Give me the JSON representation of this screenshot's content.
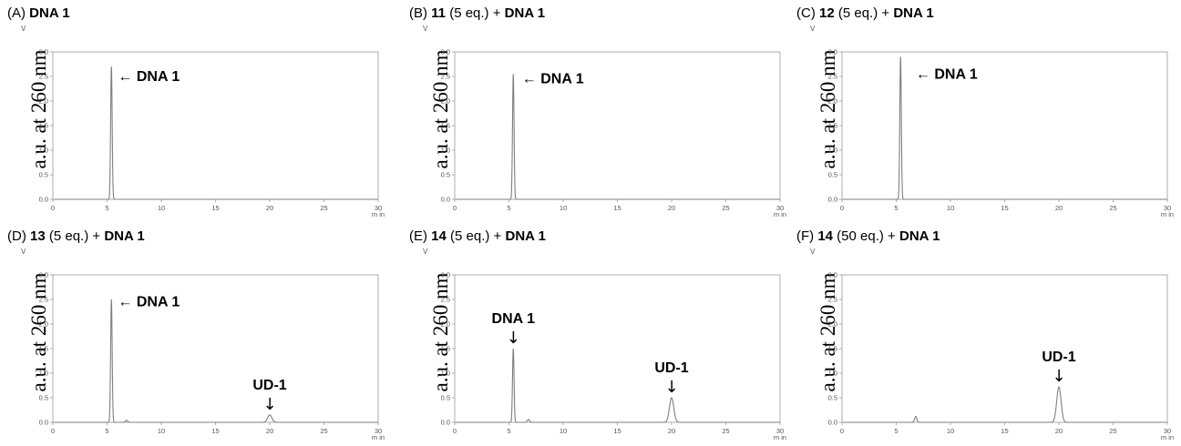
{
  "ylabel": "a.u. at 260 nm",
  "y_unit_mark": "V",
  "x_unit_mark": "m in",
  "chart_data": [
    {
      "type": "line",
      "id": "A",
      "title": {
        "prefix": "(A) ",
        "compound": "",
        "eq": "",
        "dna": "DNA 1"
      },
      "xlim": [
        0,
        30
      ],
      "ylim": [
        0,
        3.0
      ],
      "xticks": [
        "0",
        "5",
        "10",
        "15",
        "20",
        "25",
        "30"
      ],
      "yticks": [
        "0.0",
        "0.5",
        "1.0",
        "1.5",
        "2.0",
        "2.5",
        "3.0"
      ],
      "baseline": 0.0,
      "peaks": [
        {
          "x": 5.4,
          "y": 2.7,
          "w": 0.07
        }
      ],
      "annotations": [
        {
          "text": "DNA 1",
          "style": "left-arrow",
          "x": 6.0,
          "y": 2.5
        }
      ]
    },
    {
      "type": "line",
      "id": "B",
      "title": {
        "prefix": "(B) ",
        "compound": "11",
        "eq": " (5 eq.) + ",
        "dna": "DNA 1"
      },
      "xlim": [
        0,
        30
      ],
      "ylim": [
        0,
        3.0
      ],
      "xticks": [
        "0",
        "5",
        "10",
        "15",
        "20",
        "25",
        "30"
      ],
      "yticks": [
        "0.0",
        "0.5",
        "1.0",
        "1.5",
        "2.0",
        "2.5",
        "3.0"
      ],
      "baseline": 0.0,
      "peaks": [
        {
          "x": 5.4,
          "y": 2.55,
          "w": 0.07
        }
      ],
      "annotations": [
        {
          "text": "DNA 1",
          "style": "left-arrow",
          "x": 6.2,
          "y": 2.45
        }
      ]
    },
    {
      "type": "line",
      "id": "C",
      "title": {
        "prefix": "(C) ",
        "compound": "12",
        "eq": " (5 eq.) + ",
        "dna": "DNA 1"
      },
      "xlim": [
        0,
        30
      ],
      "ylim": [
        0,
        3.0
      ],
      "xticks": [
        "0",
        "5",
        "10",
        "15",
        "20",
        "25",
        "30"
      ],
      "yticks": [
        "0.0",
        "0.5",
        "1.0",
        "1.5",
        "2.0",
        "2.5",
        "3.0"
      ],
      "baseline": 0.0,
      "peaks": [
        {
          "x": 5.4,
          "y": 2.9,
          "w": 0.07
        }
      ],
      "annotations": [
        {
          "text": "DNA 1",
          "style": "left-arrow",
          "x": 6.8,
          "y": 2.55
        }
      ]
    },
    {
      "type": "line",
      "id": "D",
      "title": {
        "prefix": "(D) ",
        "compound": "13",
        "eq": " (5 eq.) + ",
        "dna": "DNA 1"
      },
      "xlim": [
        0,
        30
      ],
      "ylim": [
        0,
        3.0
      ],
      "xticks": [
        "0",
        "5",
        "10",
        "15",
        "20",
        "25",
        "30"
      ],
      "yticks": [
        "0.0",
        "0.5",
        "1.0",
        "1.5",
        "2.0",
        "2.5",
        "3.0"
      ],
      "baseline": 0.0,
      "peaks": [
        {
          "x": 5.4,
          "y": 2.5,
          "w": 0.07
        },
        {
          "x": 6.8,
          "y": 0.04,
          "w": 0.1
        },
        {
          "x": 20.0,
          "y": 0.15,
          "w": 0.2
        }
      ],
      "annotations": [
        {
          "text": "DNA 1",
          "style": "left-arrow",
          "x": 6.0,
          "y": 2.45
        },
        {
          "text": "UD-1",
          "style": "down-arrow",
          "x": 20.0,
          "y": 0.15
        }
      ]
    },
    {
      "type": "line",
      "id": "E",
      "title": {
        "prefix": "(E) ",
        "compound": "14",
        "eq": " (5 eq.) + ",
        "dna": "DNA 1"
      },
      "xlim": [
        0,
        30
      ],
      "ylim": [
        0,
        3.0
      ],
      "xticks": [
        "0",
        "5",
        "10",
        "15",
        "20",
        "25",
        "30"
      ],
      "yticks": [
        "0.0",
        "0.5",
        "1.0",
        "1.5",
        "2.0",
        "2.5",
        "3.0"
      ],
      "baseline": 0.0,
      "peaks": [
        {
          "x": 5.4,
          "y": 1.5,
          "w": 0.07
        },
        {
          "x": 6.8,
          "y": 0.06,
          "w": 0.1
        },
        {
          "x": 20.0,
          "y": 0.5,
          "w": 0.2
        }
      ],
      "annotations": [
        {
          "text": "DNA 1",
          "style": "down-arrow",
          "x": 5.4,
          "y": 1.5
        },
        {
          "text": "UD-1",
          "style": "down-arrow",
          "x": 20.0,
          "y": 0.5
        }
      ]
    },
    {
      "type": "line",
      "id": "F",
      "title": {
        "prefix": "(F) ",
        "compound": "14",
        "eq": " (50 eq.) + ",
        "dna": "DNA 1"
      },
      "xlim": [
        0,
        30
      ],
      "ylim": [
        0,
        3.0
      ],
      "xticks": [
        "0",
        "5",
        "10",
        "15",
        "20",
        "25",
        "30"
      ],
      "yticks": [
        "0.0",
        "0.5",
        "1.0",
        "1.5",
        "2.0",
        "2.5",
        "3.0"
      ],
      "baseline": 0.0,
      "peaks": [
        {
          "x": 6.8,
          "y": 0.12,
          "w": 0.1
        },
        {
          "x": 20.0,
          "y": 0.72,
          "w": 0.2
        }
      ],
      "annotations": [
        {
          "text": "UD-1",
          "style": "down-arrow",
          "x": 20.0,
          "y": 0.72
        }
      ]
    }
  ]
}
